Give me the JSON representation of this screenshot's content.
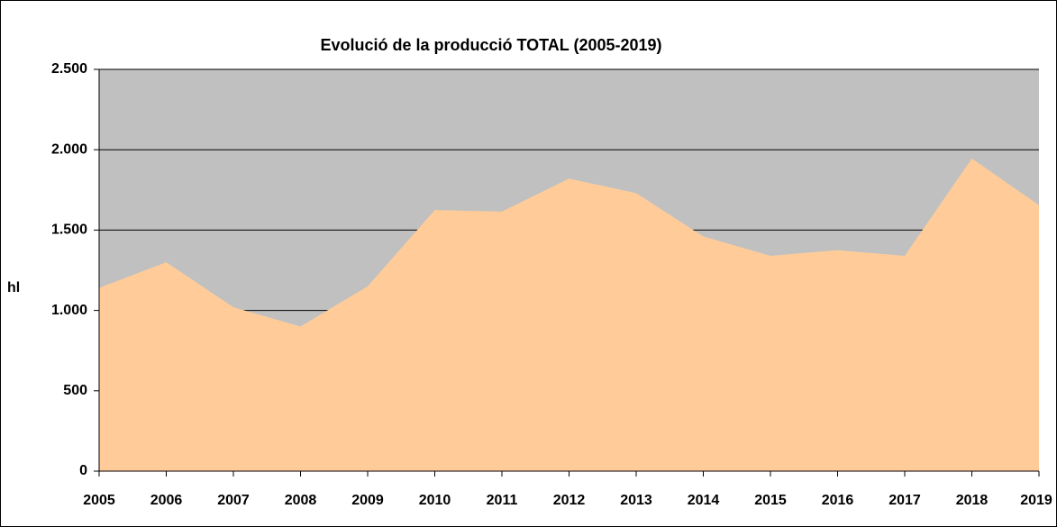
{
  "chart_data": {
    "type": "area",
    "title": "Evolució de la producció TOTAL (2005-2019)",
    "y_label": "hl",
    "categories": [
      "2005",
      "2006",
      "2007",
      "2008",
      "2009",
      "2010",
      "2011",
      "2012",
      "2013",
      "2014",
      "2015",
      "2016",
      "2017",
      "2018",
      "2019"
    ],
    "values": [
      1140,
      1300,
      1020,
      900,
      1150,
      1625,
      1615,
      1820,
      1730,
      1460,
      1340,
      1375,
      1340,
      1945,
      1655
    ],
    "color": "#ffcc99",
    "plot_background": "#c0c0c0",
    "ylim": [
      0,
      2500
    ],
    "yticks": [
      0,
      500,
      {
        "value": 1000,
        "label": "1.000"
      },
      {
        "value": 1500,
        "label": "1.500"
      },
      {
        "value": 2000,
        "label": "2.000"
      },
      {
        "value": 2500,
        "label": "2.500"
      }
    ],
    "grid": true
  }
}
